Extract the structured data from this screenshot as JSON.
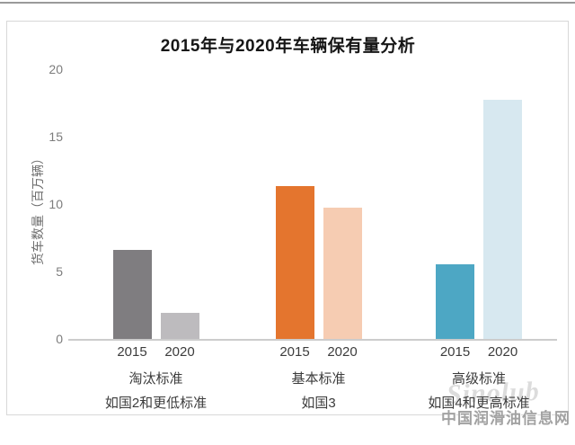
{
  "watermark": {
    "logo_text": "Sinolub",
    "site_name": "中国润滑油信息网"
  },
  "chart_data": {
    "type": "bar",
    "title": "2015年与2020年车辆保有量分析",
    "xlabel": "",
    "ylabel": "货车数量（百万辆）",
    "ylim": [
      0,
      20
    ],
    "yticks": [
      0,
      5,
      10,
      15,
      20
    ],
    "grid": false,
    "legend": "none",
    "categories": [
      {
        "label_line1": "淘汰标准",
        "label_line2": "如国2和更低标准"
      },
      {
        "label_line1": "基本标准",
        "label_line2": "如国3"
      },
      {
        "label_line1": "高级标准",
        "label_line2": "如国4和更高标准"
      }
    ],
    "series": [
      {
        "name": "2015",
        "values": [
          6.6,
          11.3,
          5.5
        ],
        "colors": [
          "#7f7d80",
          "#e4752e",
          "#4da7c4"
        ]
      },
      {
        "name": "2020",
        "values": [
          1.9,
          9.7,
          17.7
        ],
        "colors": [
          "#bdbbbe",
          "#f6ccb2",
          "#d7e8f0"
        ]
      }
    ]
  }
}
